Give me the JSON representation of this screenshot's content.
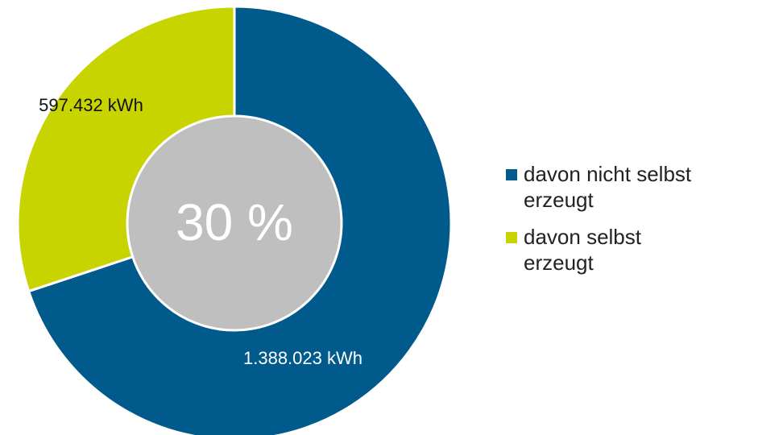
{
  "chart_data": {
    "type": "donut",
    "categories": [
      "davon nicht selbst erzeugt",
      "davon selbst erzeugt"
    ],
    "values": [
      1388023,
      597432
    ],
    "value_labels": [
      "1.388.023 kWh",
      "597.432 kWh"
    ],
    "colors": [
      "#005a8c",
      "#c8d400"
    ],
    "center_label": "30 %",
    "legend": "right"
  }
}
